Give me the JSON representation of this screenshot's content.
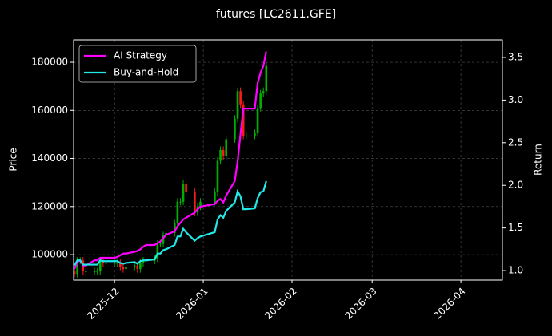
{
  "chart_data": {
    "type": "candlestick",
    "title": "futures [LC2611.GFE]",
    "ylabel": "Price",
    "y2label": "Return",
    "x": [
      -14,
      -13,
      -12,
      -11,
      -10,
      -7,
      -6,
      -5,
      -4,
      -3,
      0,
      1,
      2,
      3,
      4,
      7,
      8,
      9,
      10,
      11,
      14,
      15,
      16,
      17,
      18,
      21,
      22,
      23,
      24,
      25,
      28,
      29,
      30,
      35,
      36,
      37,
      38,
      39,
      42,
      43,
      44,
      45,
      46,
      49,
      50,
      51,
      52,
      53
    ],
    "open": [
      93000,
      92000,
      97500,
      97500,
      93000,
      93000,
      93000,
      93000,
      97500,
      96500,
      96500,
      96500,
      96500,
      95000,
      94000,
      95000,
      95500,
      94000,
      96500,
      97500,
      97500,
      98500,
      104500,
      104500,
      108000,
      109000,
      113000,
      122000,
      122000,
      129500,
      126000,
      117500,
      120000,
      122000,
      126000,
      139000,
      143500,
      141000,
      148000,
      156500,
      168000,
      162500,
      149500,
      149500,
      150500,
      161000,
      167000,
      168000
    ],
    "high": [
      94500,
      99000,
      99000,
      99000,
      94500,
      94500,
      94500,
      99000,
      99000,
      98000,
      98000,
      98000,
      98000,
      96500,
      96500,
      97000,
      97000,
      98000,
      99000,
      99000,
      100000,
      106000,
      106000,
      109500,
      110500,
      114500,
      123500,
      123500,
      131000,
      131000,
      127500,
      121500,
      123500,
      127500,
      140500,
      145000,
      145000,
      149500,
      158000,
      169500,
      169500,
      164000,
      151000,
      152000,
      162500,
      168500,
      169500,
      180000
    ],
    "low": [
      90500,
      90500,
      96000,
      91500,
      91500,
      91500,
      91500,
      91500,
      95000,
      95000,
      95000,
      95000,
      93500,
      92500,
      92500,
      93500,
      92500,
      92500,
      95000,
      96000,
      96000,
      97000,
      103000,
      103000,
      106500,
      107500,
      111500,
      120500,
      120500,
      124500,
      116000,
      116000,
      118500,
      120500,
      124500,
      137500,
      139500,
      139500,
      146500,
      155000,
      161000,
      148000,
      148000,
      148000,
      149000,
      159500,
      165500,
      166500
    ],
    "close": [
      92000,
      97500,
      97500,
      93000,
      93000,
      93000,
      93000,
      97500,
      96500,
      96500,
      96500,
      96500,
      95000,
      94000,
      95000,
      95500,
      94000,
      96500,
      97500,
      97500,
      98500,
      104500,
      104500,
      108000,
      109000,
      113000,
      122000,
      122000,
      129500,
      126000,
      117500,
      120000,
      122000,
      126000,
      139000,
      143500,
      141000,
      148000,
      156500,
      168000,
      162500,
      149500,
      149500,
      150500,
      161000,
      167000,
      168000,
      178500
    ],
    "up_color": "#00b000",
    "down_color": "#ff1a1a",
    "series": [
      {
        "name": "AI Strategy",
        "color": "#ff00ff",
        "axis": "y2",
        "values": [
          1.02,
          1.1,
          1.12,
          1.06,
          1.06,
          1.12,
          1.12,
          1.15,
          1.15,
          1.15,
          1.15,
          1.16,
          1.18,
          1.2,
          1.2,
          1.22,
          1.23,
          1.25,
          1.28,
          1.3,
          1.3,
          1.32,
          1.34,
          1.38,
          1.42,
          1.46,
          1.52,
          1.56,
          1.6,
          1.62,
          1.68,
          1.72,
          1.75,
          1.78,
          1.82,
          1.84,
          1.8,
          1.88,
          2.05,
          2.28,
          2.6,
          2.9,
          2.9,
          2.9,
          3.2,
          3.32,
          3.4,
          3.57
        ]
      },
      {
        "name": "Buy-and-Hold",
        "color": "#22e8e8",
        "axis": "y2",
        "values": [
          1.06,
          1.12,
          1.12,
          1.07,
          1.07,
          1.07,
          1.07,
          1.12,
          1.11,
          1.11,
          1.11,
          1.11,
          1.09,
          1.08,
          1.09,
          1.1,
          1.08,
          1.11,
          1.12,
          1.12,
          1.13,
          1.2,
          1.2,
          1.24,
          1.25,
          1.3,
          1.4,
          1.4,
          1.49,
          1.45,
          1.35,
          1.38,
          1.4,
          1.45,
          1.6,
          1.65,
          1.62,
          1.7,
          1.8,
          1.93,
          1.87,
          1.72,
          1.72,
          1.73,
          1.85,
          1.92,
          1.93,
          2.05
        ]
      }
    ],
    "xlim": [
      -14.3,
      135.5
    ],
    "xticks": [
      {
        "value": 0,
        "label": "2025-12"
      },
      {
        "value": 31,
        "label": "2026-01"
      },
      {
        "value": 62,
        "label": "2026-02"
      },
      {
        "value": 90,
        "label": "2026-03"
      },
      {
        "value": 121,
        "label": "2026-04"
      }
    ],
    "ylim": [
      89400,
      189300
    ],
    "yticks": [
      100000,
      120000,
      140000,
      160000,
      180000
    ],
    "y2lim": [
      0.888,
      3.706
    ],
    "y2ticks": [
      {
        "value": 1,
        "label": "1.0"
      },
      1.5,
      {
        "value": 2,
        "label": "2.0"
      },
      2.5,
      {
        "value": 3,
        "label": "3.0"
      },
      3.5
    ],
    "grid": true,
    "legend": "upper left"
  }
}
